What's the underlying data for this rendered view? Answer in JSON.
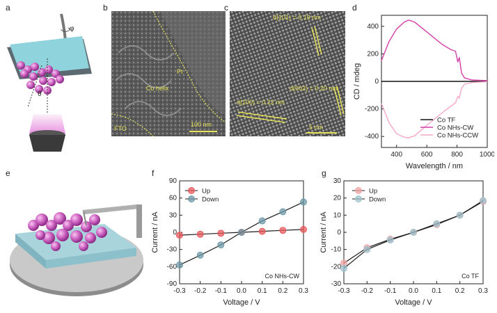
{
  "panels": {
    "a": "a",
    "b": "b",
    "c": "c",
    "d": "d",
    "e": "e",
    "f": "f",
    "g": "g"
  },
  "schematic_a": {
    "phi": "φ",
    "theta": "θ"
  },
  "sem_b": {
    "pt": "Pt",
    "helix": "Co helix",
    "fto": "FTO",
    "scale": "100 nm"
  },
  "tem_c": {
    "d1": "d(101) = 0.19 nm",
    "d2": "d(002) = 0.20 nm",
    "d3": "d(100) = 0.22 nm",
    "scale": "5 nm"
  },
  "chart_data": [
    {
      "panel": "d",
      "type": "line",
      "xlabel": "Wavelength / nm",
      "ylabel": "CD / mdeg",
      "xlim": [
        300,
        1000
      ],
      "ylim": [
        -480,
        480
      ],
      "xticks": [
        400,
        600,
        800,
        1000
      ],
      "yticks": [
        -400,
        -200,
        0,
        200,
        400
      ],
      "legend": [
        "Co TF",
        "Co NHs-CW",
        "Co NHs-CCW"
      ],
      "series": [
        {
          "name": "Co TF",
          "color": "#111111",
          "x": [
            300,
            400,
            500,
            600,
            700,
            800,
            900,
            1000
          ],
          "y": [
            0,
            0,
            0,
            0,
            0,
            0,
            0,
            0
          ]
        },
        {
          "name": "Co NHs-CW",
          "color": "#d43fa8",
          "x": [
            300,
            350,
            400,
            450,
            480,
            520,
            600,
            700,
            760,
            790,
            805,
            815,
            830,
            850,
            900,
            950,
            1000
          ],
          "y": [
            150,
            290,
            380,
            430,
            445,
            430,
            360,
            270,
            230,
            220,
            140,
            175,
            60,
            25,
            10,
            8,
            5
          ]
        },
        {
          "name": "Co NHs-CCW",
          "color": "#f4a8c8",
          "x": [
            300,
            350,
            400,
            450,
            480,
            520,
            600,
            700,
            760,
            790,
            805,
            815,
            830,
            850,
            900,
            950,
            1000
          ],
          "y": [
            -160,
            -300,
            -380,
            -405,
            -410,
            -395,
            -320,
            -230,
            -180,
            -155,
            -110,
            -120,
            -50,
            -20,
            -8,
            -5,
            -3
          ]
        }
      ]
    },
    {
      "panel": "f",
      "type": "line",
      "xlabel": "Voltage / V",
      "ylabel": "Current / nA",
      "xlim": [
        -0.3,
        0.3
      ],
      "ylim": [
        -90,
        90
      ],
      "xticks": [
        -0.3,
        -0.2,
        -0.1,
        0.0,
        0.1,
        0.2,
        0.3
      ],
      "yticks": [
        -90,
        -60,
        -30,
        0,
        30,
        60,
        90
      ],
      "annotation": "Co NHs-CW",
      "legend": [
        "Up",
        "Down"
      ],
      "series": [
        {
          "name": "Up",
          "color": "#e8585c",
          "x": [
            -0.3,
            -0.2,
            -0.1,
            0.0,
            0.1,
            0.2,
            0.3
          ],
          "y": [
            -5,
            -3.3,
            -1.6,
            0,
            1.7,
            3.4,
            5
          ]
        },
        {
          "name": "Down",
          "color": "#6f9aa8",
          "x": [
            -0.3,
            -0.2,
            -0.1,
            0.0,
            0.1,
            0.2,
            0.3
          ],
          "y": [
            -57,
            -40,
            -22,
            0,
            20,
            36,
            53
          ]
        }
      ]
    },
    {
      "panel": "g",
      "type": "line",
      "xlabel": "Voltage / V",
      "ylabel": "Current / nA",
      "xlim": [
        -0.3,
        0.3
      ],
      "ylim": [
        -30,
        30
      ],
      "xticks": [
        -0.3,
        -0.2,
        -0.1,
        0.0,
        0.1,
        0.2,
        0.3
      ],
      "yticks": [
        -30,
        -20,
        -10,
        0,
        10,
        20,
        30
      ],
      "annotation": "Co TF",
      "legend": [
        "Up",
        "Down"
      ],
      "series": [
        {
          "name": "Up",
          "color": "#f2a4a4",
          "x": [
            -0.3,
            -0.2,
            -0.1,
            0.0,
            0.1,
            0.2,
            0.3
          ],
          "y": [
            -18,
            -9,
            -4,
            0,
            4.5,
            10,
            18
          ]
        },
        {
          "name": "Down",
          "color": "#9fc3cd",
          "x": [
            -0.3,
            -0.2,
            -0.1,
            0.0,
            0.1,
            0.2,
            0.3
          ],
          "y": [
            -21,
            -10,
            -4.5,
            0,
            5,
            10,
            18.5
          ]
        }
      ]
    }
  ]
}
